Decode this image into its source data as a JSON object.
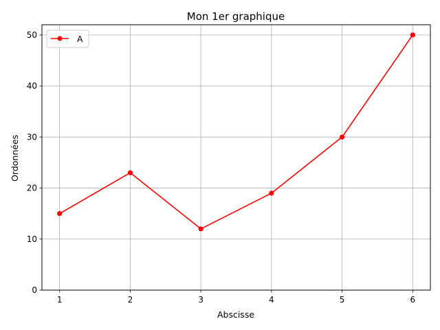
{
  "chart_data": {
    "type": "line",
    "title": "Mon 1er graphique",
    "xlabel": "Abscisse",
    "ylabel": "Ordonnées",
    "x": [
      1,
      2,
      3,
      4,
      5,
      6
    ],
    "xlim": [
      0.75,
      6.25
    ],
    "ylim": [
      0,
      52
    ],
    "xticks": [
      1,
      2,
      3,
      4,
      5,
      6
    ],
    "yticks": [
      0,
      10,
      20,
      30,
      40,
      50
    ],
    "grid": true,
    "legend_position": "top-left",
    "series": [
      {
        "name": "A",
        "values": [
          15,
          23,
          12,
          19,
          30,
          50
        ],
        "color": "#ff0000",
        "marker": "circle"
      }
    ]
  }
}
